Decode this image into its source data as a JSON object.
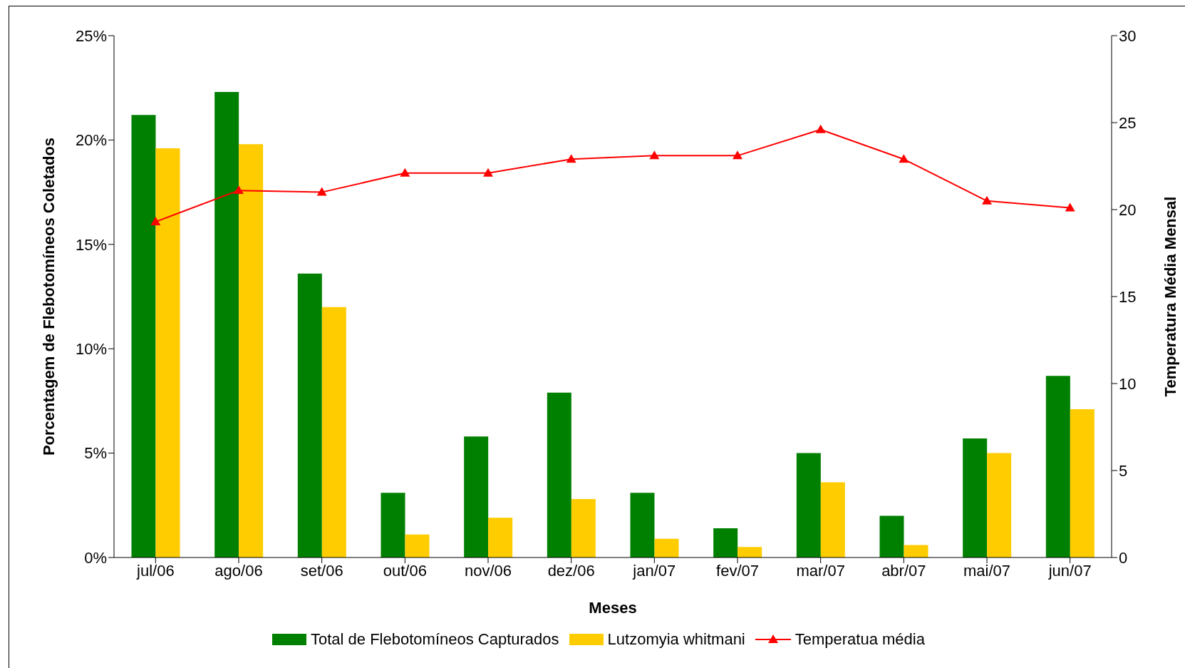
{
  "chart_data": {
    "type": "bar",
    "xlabel": "Meses",
    "ylabel": "Porcentagem de Flebotomíneos Coletados",
    "y2label": "Temperatura Média Mensal",
    "categories": [
      "jul/06",
      "ago/06",
      "set/06",
      "out/06",
      "nov/06",
      "dez/06",
      "jan/07",
      "fev/07",
      "mar/07",
      "abr/07",
      "mai/07",
      "jun/07"
    ],
    "series": [
      {
        "name": "Total de Flebotomíneos Capturados",
        "color": "#008000",
        "values": [
          21.2,
          22.3,
          13.6,
          3.1,
          5.8,
          7.9,
          3.1,
          1.4,
          5.0,
          2.0,
          5.7,
          8.7
        ]
      },
      {
        "name": "Lutzomyia whitmani",
        "color": "#ffcc00",
        "values": [
          19.6,
          19.8,
          12.0,
          1.1,
          1.9,
          2.8,
          0.9,
          0.5,
          3.6,
          0.6,
          5.0,
          7.1
        ]
      },
      {
        "name": "Temperatua média",
        "type": "line",
        "axis": "y2",
        "color": "#ff0000",
        "marker": "triangle",
        "values": [
          19.3,
          21.1,
          21.0,
          22.1,
          22.1,
          22.9,
          23.1,
          23.1,
          24.6,
          22.9,
          20.5,
          20.1
        ]
      }
    ],
    "ylim": [
      0,
      25
    ],
    "yticks": [
      {
        "value": 0,
        "label": "0%"
      },
      {
        "value": 5,
        "label": "5%"
      },
      {
        "value": 10,
        "label": "10%"
      },
      {
        "value": 15,
        "label": "15%"
      },
      {
        "value": 20,
        "label": "20%"
      },
      {
        "value": 25,
        "label": "25%"
      }
    ],
    "y2lim": [
      0,
      30
    ],
    "y2ticks": [
      0,
      5,
      10,
      15,
      20,
      25,
      30
    ],
    "grid": false,
    "legend": "bottom"
  }
}
